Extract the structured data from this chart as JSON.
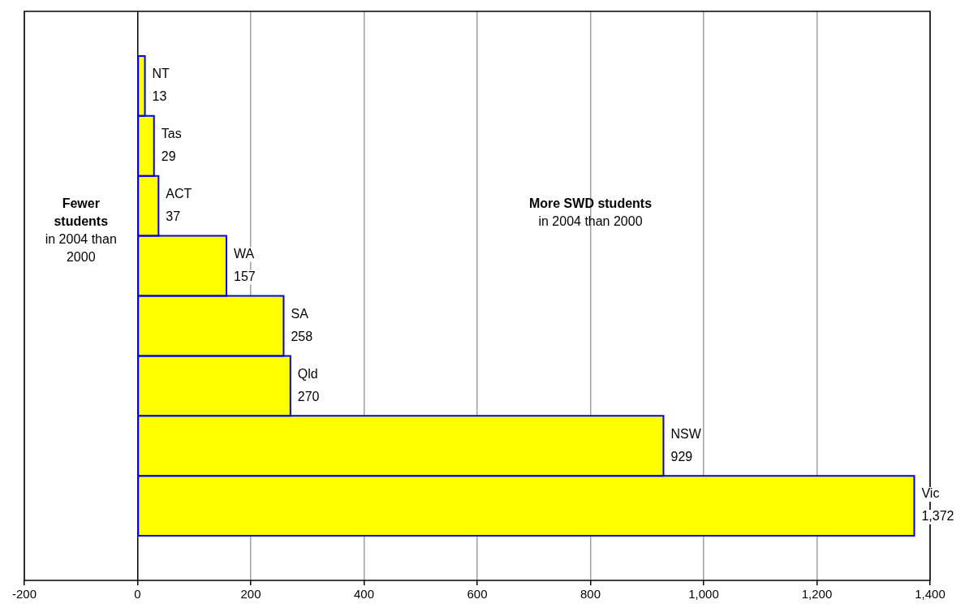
{
  "chart_data": {
    "type": "bar",
    "orientation": "horizontal",
    "categories": [
      "NT",
      "Tas",
      "ACT",
      "WA",
      "SA",
      "Qld",
      "NSW",
      "Vic"
    ],
    "values": [
      13,
      29,
      37,
      157,
      258,
      270,
      929,
      1372
    ],
    "value_labels": [
      "13",
      "29",
      "37",
      "157",
      "258",
      "270",
      "929",
      "1,372"
    ],
    "color": "#ffff00",
    "xlim": [
      -200,
      1400
    ],
    "xticks": [
      -200,
      0,
      200,
      400,
      600,
      800,
      {
        "value": 1000,
        "label": "1,000"
      },
      {
        "value": 1200,
        "label": "1,200"
      },
      {
        "value": 1400,
        "label": "1,400"
      }
    ],
    "grid": "x",
    "tick_labels": "x",
    "legend": false,
    "annotations": [
      "Fewer students",
      "in 2004 than 2000",
      "More SWD students",
      "in 2004 than 2000"
    ]
  }
}
